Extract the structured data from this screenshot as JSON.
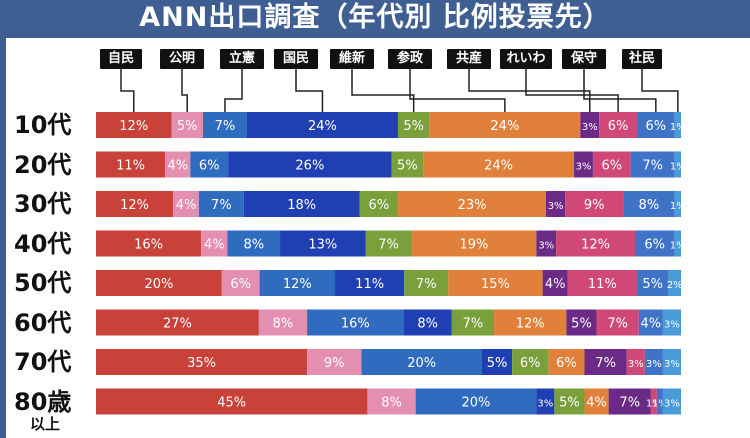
{
  "title": "ANN出口調査（年代別 比例投票先）",
  "chart_data": {
    "type": "bar",
    "stacked": true,
    "orientation": "horizontal",
    "title": "ANN出口調査（年代別 比例投票先）",
    "legend_position": "top",
    "categories": [
      "10代",
      "20代",
      "30代",
      "40代",
      "50代",
      "60代",
      "70代",
      "80歳以上"
    ],
    "category_labels": [
      {
        "main": "10代",
        "sub": ""
      },
      {
        "main": "20代",
        "sub": ""
      },
      {
        "main": "30代",
        "sub": ""
      },
      {
        "main": "40代",
        "sub": ""
      },
      {
        "main": "50代",
        "sub": ""
      },
      {
        "main": "60代",
        "sub": ""
      },
      {
        "main": "70代",
        "sub": ""
      },
      {
        "main": "80歳",
        "sub": "以上"
      }
    ],
    "series": [
      {
        "name": "自民",
        "color": "#c8423a",
        "values": [
          12,
          11,
          12,
          16,
          20,
          27,
          35,
          45
        ]
      },
      {
        "name": "公明",
        "color": "#e58fb0",
        "values": [
          5,
          4,
          4,
          4,
          6,
          8,
          9,
          8
        ]
      },
      {
        "name": "立憲",
        "color": "#2f6bbf",
        "values": [
          7,
          6,
          7,
          8,
          12,
          16,
          20,
          20
        ]
      },
      {
        "name": "国民",
        "color": "#1f3fb3",
        "values": [
          24,
          26,
          18,
          13,
          11,
          8,
          5,
          3
        ]
      },
      {
        "name": "維新",
        "color": "#7aa03c",
        "values": [
          5,
          5,
          6,
          7,
          7,
          7,
          6,
          5
        ]
      },
      {
        "name": "参政",
        "color": "#e0803a",
        "values": [
          24,
          24,
          23,
          19,
          15,
          12,
          6,
          4
        ]
      },
      {
        "name": "共産",
        "color": "#6a2a86",
        "values": [
          3,
          3,
          3,
          3,
          4,
          5,
          7,
          7
        ]
      },
      {
        "name": "れいわ",
        "color": "#d04878",
        "values": [
          6,
          6,
          9,
          12,
          11,
          7,
          3,
          1
        ]
      },
      {
        "name": "保守",
        "color": "#3f73c8",
        "values": [
          6,
          7,
          8,
          6,
          5,
          4,
          3,
          1
        ]
      },
      {
        "name": "社民",
        "color": "#4a9ad8",
        "values": [
          1,
          1,
          1,
          1,
          2,
          3,
          3,
          3
        ]
      }
    ],
    "value_labels": [
      [
        "12%",
        "5%",
        "7%",
        "24%",
        "5%",
        "24%",
        "3%",
        "6%",
        "6%",
        "1%"
      ],
      [
        "11%",
        "4%",
        "6%",
        "26%",
        "5%",
        "24%",
        "3%",
        "6%",
        "7%",
        "1%"
      ],
      [
        "12%",
        "4%",
        "7%",
        "18%",
        "6%",
        "23%",
        "3%",
        "9%",
        "8%",
        "1%"
      ],
      [
        "16%",
        "4%",
        "8%",
        "13%",
        "7%",
        "19%",
        "3%",
        "12%",
        "6%",
        "1%"
      ],
      [
        "20%",
        "6%",
        "12%",
        "11%",
        "7%",
        "15%",
        "4%",
        "11%",
        "5%",
        "2%"
      ],
      [
        "27%",
        "8%",
        "16%",
        "8%",
        "7%",
        "12%",
        "5%",
        "7%",
        "4%",
        "3%"
      ],
      [
        "35%",
        "9%",
        "20%",
        "5%",
        "6%",
        "6%",
        "7%",
        "3%",
        "3%",
        "3%"
      ],
      [
        "45%",
        "8%",
        "20%",
        "3%",
        "5%",
        "4%",
        "7%",
        "1%",
        "1%",
        "3%"
      ]
    ]
  }
}
